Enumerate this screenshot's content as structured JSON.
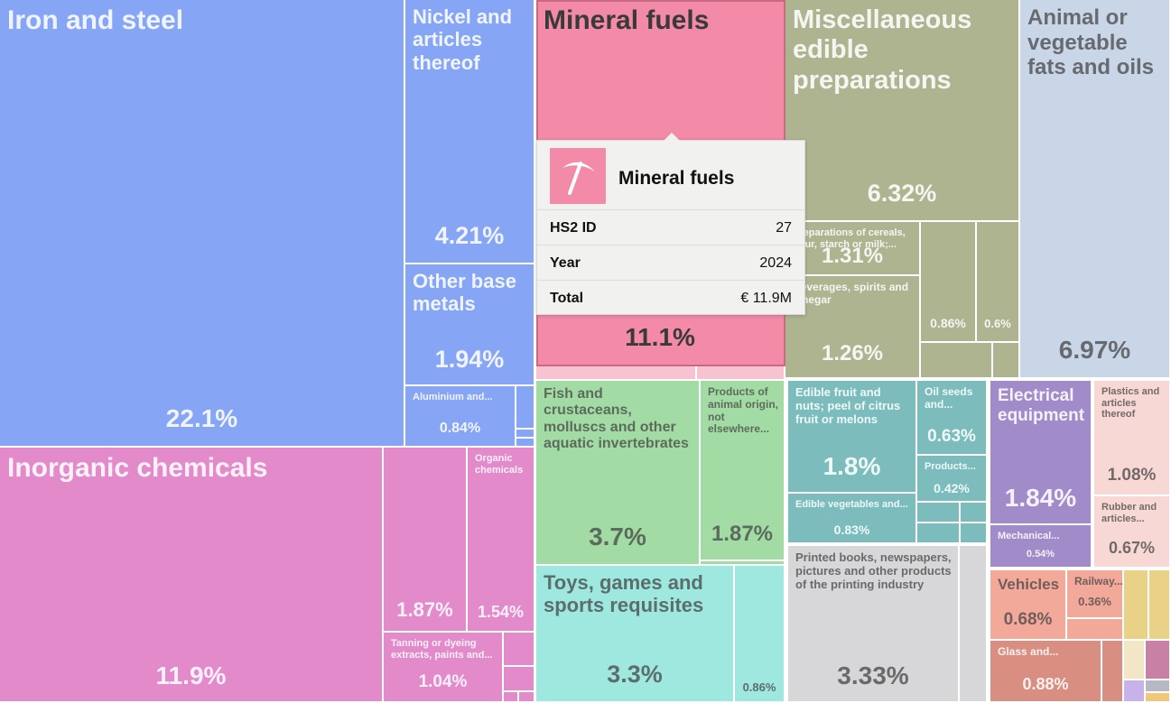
{
  "chart_data": {
    "type": "treemap",
    "unit": "share of total (%)",
    "tiles": [
      {
        "id": "iron",
        "label": "Iron and steel",
        "value": "22.1%"
      },
      {
        "id": "nickel",
        "label": "Nickel and articles thereof",
        "value": "4.21%"
      },
      {
        "id": "otherbase",
        "label": "Other base metals",
        "value": "1.94%"
      },
      {
        "id": "alum",
        "label": "Aluminium and...",
        "value": "0.84%"
      },
      {
        "id": "inorg",
        "label": "Inorganic chemicals",
        "value": "11.9%"
      },
      {
        "id": "chem2",
        "label": "",
        "value": "1.87%"
      },
      {
        "id": "organic",
        "label": "Organic chemicals",
        "value": "1.54%"
      },
      {
        "id": "tanning",
        "label": "Tanning or dyeing extracts, paints and...",
        "value": "1.04%"
      },
      {
        "id": "mineral",
        "label": "Mineral fuels",
        "value": "11.1%"
      },
      {
        "id": "misc",
        "label": "Miscellaneous edible preparations",
        "value": "6.32%"
      },
      {
        "id": "cereal",
        "label": "Preparations of cereals, flour, starch or milk;...",
        "value": "1.31%"
      },
      {
        "id": "bev",
        "label": "Beverages, spirits and vinegar",
        "value": "1.26%"
      },
      {
        "id": "food3",
        "label": "",
        "value": "0.86%"
      },
      {
        "id": "food4",
        "label": "",
        "value": "0.6%"
      },
      {
        "id": "animal",
        "label": "Animal or vegetable fats and oils",
        "value": "6.97%"
      },
      {
        "id": "fish",
        "label": "Fish and crustaceans, molluscs and other aquatic invertebrates",
        "value": "3.7%"
      },
      {
        "id": "prodanimal",
        "label": "Products of animal origin, not elsewhere...",
        "value": "1.87%"
      },
      {
        "id": "toys",
        "label": "Toys, games and sports requisites",
        "value": "3.3%"
      },
      {
        "id": "toys2",
        "label": "",
        "value": "0.86%"
      },
      {
        "id": "fruit",
        "label": "Edible fruit and nuts; peel of citrus fruit or melons",
        "value": "1.8%"
      },
      {
        "id": "oilseeds",
        "label": "Oil seeds and...",
        "value": "0.63%"
      },
      {
        "id": "products",
        "label": "Products...",
        "value": "0.42%"
      },
      {
        "id": "veg",
        "label": "Edible vegetables and...",
        "value": "0.83%"
      },
      {
        "id": "books",
        "label": "Printed books, newspapers, pictures and other products of the printing industry",
        "value": "3.33%"
      },
      {
        "id": "elec",
        "label": "Electrical equipment",
        "value": "1.84%"
      },
      {
        "id": "mech",
        "label": "Mechanical...",
        "value": "0.54%"
      },
      {
        "id": "plastics",
        "label": "Plastics and articles thereof",
        "value": "1.08%"
      },
      {
        "id": "rubber",
        "label": "Rubber and articles...",
        "value": "0.67%"
      },
      {
        "id": "vehicles",
        "label": "Vehicles",
        "value": "0.68%"
      },
      {
        "id": "railway",
        "label": "Railway...",
        "value": "0.36%"
      },
      {
        "id": "glass",
        "label": "Glass and...",
        "value": "0.88%"
      }
    ]
  },
  "tooltip": {
    "icon": "pickaxe-icon",
    "title": "Mineral fuels",
    "rows": [
      {
        "key": "HS2 ID",
        "value": "27"
      },
      {
        "key": "Year",
        "value": "2024"
      },
      {
        "key": "Total",
        "value": "€ 11.9M"
      }
    ]
  }
}
